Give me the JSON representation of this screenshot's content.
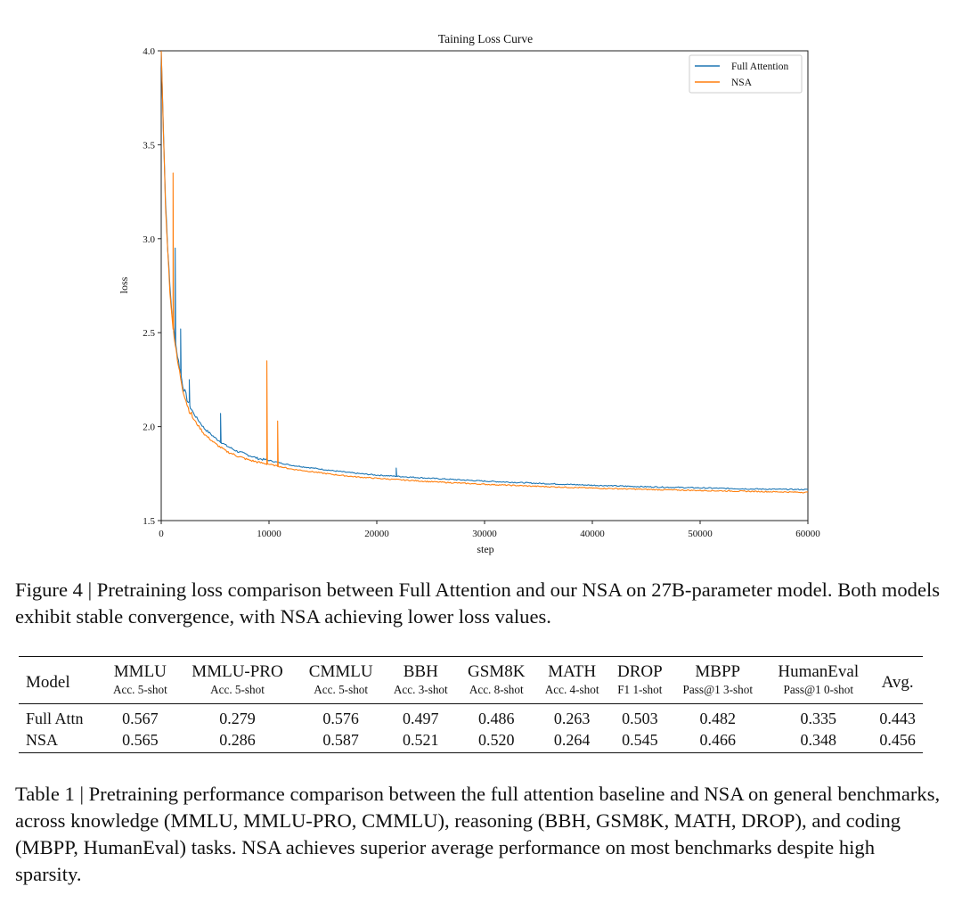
{
  "figure": {
    "caption": "Figure 4 | Pretraining loss comparison between Full Attention and our NSA on 27B-parameter model. Both models exhibit stable convergence, with NSA achieving lower loss values."
  },
  "chart_data": {
    "type": "line",
    "title": "Taining Loss Curve",
    "xlabel": "step",
    "ylabel": "loss",
    "xlim": [
      0,
      60000
    ],
    "ylim": [
      1.5,
      4.0
    ],
    "xticks": [
      0,
      10000,
      20000,
      30000,
      40000,
      50000,
      60000
    ],
    "yticks": [
      1.5,
      2.0,
      2.5,
      3.0,
      3.5,
      4.0
    ],
    "ytick_labels": [
      "1.5",
      "2.0",
      "2.5",
      "3.0",
      "3.5",
      "4.0"
    ],
    "legend_position": "top-right",
    "grid": false,
    "series": [
      {
        "name": "Full Attention",
        "color": "#1f77b4",
        "x": [
          0,
          200,
          400,
          600,
          800,
          1000,
          1200,
          1500,
          2000,
          2500,
          3000,
          4000,
          5000,
          6000,
          7000,
          8000,
          9000,
          10000,
          12000,
          14000,
          16000,
          18000,
          20000,
          25000,
          30000,
          35000,
          40000,
          45000,
          50000,
          55000,
          60000
        ],
        "y": [
          4.0,
          3.6,
          3.2,
          2.95,
          2.75,
          2.6,
          2.5,
          2.38,
          2.22,
          2.13,
          2.07,
          1.99,
          1.94,
          1.9,
          1.87,
          1.85,
          1.83,
          1.82,
          1.795,
          1.78,
          1.765,
          1.752,
          1.742,
          1.725,
          1.71,
          1.698,
          1.688,
          1.68,
          1.674,
          1.668,
          1.665
        ],
        "spikes": [
          {
            "x": 1300,
            "y": 2.95
          },
          {
            "x": 1800,
            "y": 2.52
          },
          {
            "x": 2600,
            "y": 2.25
          },
          {
            "x": 5500,
            "y": 2.07
          },
          {
            "x": 21800,
            "y": 1.78
          }
        ]
      },
      {
        "name": "NSA",
        "color": "#ff7f0e",
        "x": [
          0,
          200,
          400,
          600,
          800,
          1000,
          1200,
          1500,
          2000,
          2500,
          3000,
          4000,
          5000,
          6000,
          7000,
          8000,
          9000,
          10000,
          12000,
          14000,
          16000,
          18000,
          20000,
          25000,
          30000,
          35000,
          40000,
          45000,
          50000,
          55000,
          60000
        ],
        "y": [
          4.0,
          3.58,
          3.18,
          2.93,
          2.73,
          2.58,
          2.48,
          2.35,
          2.2,
          2.1,
          2.04,
          1.96,
          1.91,
          1.87,
          1.845,
          1.825,
          1.81,
          1.8,
          1.775,
          1.76,
          1.745,
          1.733,
          1.725,
          1.707,
          1.693,
          1.682,
          1.673,
          1.666,
          1.66,
          1.655,
          1.65
        ],
        "spikes": [
          {
            "x": 1100,
            "y": 3.35
          },
          {
            "x": 9800,
            "y": 2.35
          },
          {
            "x": 10800,
            "y": 2.03
          }
        ]
      }
    ]
  },
  "table": {
    "caption": "Table 1 | Pretraining performance comparison between the full attention baseline and NSA on general benchmarks, across knowledge (MMLU, MMLU-PRO, CMMLU), reasoning (BBH, GSM8K, MATH, DROP), and coding (MBPP, HumanEval) tasks. NSA achieves superior average performance on most benchmarks despite high sparsity.",
    "model_header": "Model",
    "avg_header": "Avg.",
    "columns": [
      {
        "name": "MMLU",
        "sub": "Acc. 5-shot"
      },
      {
        "name": "MMLU-PRO",
        "sub": "Acc. 5-shot"
      },
      {
        "name": "CMMLU",
        "sub": "Acc. 5-shot"
      },
      {
        "name": "BBH",
        "sub": "Acc. 3-shot"
      },
      {
        "name": "GSM8K",
        "sub": "Acc. 8-shot"
      },
      {
        "name": "MATH",
        "sub": "Acc. 4-shot"
      },
      {
        "name": "DROP",
        "sub": "F1 1-shot"
      },
      {
        "name": "MBPP",
        "sub": "Pass@1 3-shot"
      },
      {
        "name": "HumanEval",
        "sub": "Pass@1 0-shot"
      }
    ],
    "rows": [
      {
        "model": "Full Attn",
        "values": [
          "0.567",
          "0.279",
          "0.576",
          "0.497",
          "0.486",
          "0.263",
          "0.503",
          "0.482",
          "0.335"
        ],
        "bold": [
          true,
          false,
          false,
          false,
          false,
          false,
          false,
          true,
          false
        ],
        "avg": "0.443",
        "avg_bold": false
      },
      {
        "model": "NSA",
        "values": [
          "0.565",
          "0.286",
          "0.587",
          "0.521",
          "0.520",
          "0.264",
          "0.545",
          "0.466",
          "0.348"
        ],
        "bold": [
          false,
          true,
          true,
          true,
          true,
          true,
          true,
          false,
          true
        ],
        "avg": "0.456",
        "avg_bold": true
      }
    ]
  }
}
